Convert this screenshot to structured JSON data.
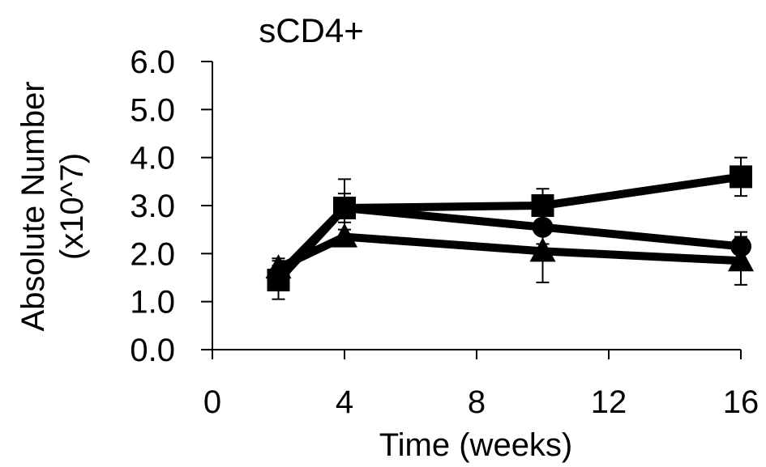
{
  "chart_data": {
    "type": "line",
    "title": "sCD4+",
    "xlabel": "Time (weeks)",
    "ylabel_lines": [
      "Absolute Number",
      "(x10^7)"
    ],
    "xlim": [
      0,
      16
    ],
    "ylim": [
      0,
      6
    ],
    "xticks": [
      0,
      4,
      8,
      12,
      16
    ],
    "xtick_labels": [
      "0",
      "4",
      "8",
      "12",
      "16"
    ],
    "yticks": [
      0,
      1,
      2,
      3,
      4,
      5,
      6
    ],
    "ytick_labels": [
      "0.0",
      "1.0",
      "2.0",
      "3.0",
      "4.0",
      "5.0",
      "6.0"
    ],
    "grid": false,
    "legend": "none",
    "series": [
      {
        "marker": "square",
        "color": "#000000",
        "x": [
          2,
          4,
          10,
          16
        ],
        "y": [
          1.45,
          2.95,
          3.0,
          3.6
        ],
        "error": [
          0.4,
          0.6,
          0.35,
          0.4
        ]
      },
      {
        "marker": "circle",
        "color": "#000000",
        "x": [
          2,
          4,
          10,
          16
        ],
        "y": [
          1.55,
          2.95,
          2.55,
          2.15
        ],
        "error": [
          0.2,
          0.3,
          0.35,
          0.3
        ]
      },
      {
        "marker": "triangle",
        "color": "#000000",
        "x": [
          2,
          4,
          10,
          16
        ],
        "y": [
          1.7,
          2.35,
          2.05,
          1.85
        ],
        "error": [
          0.2,
          0.15,
          0.65,
          0.5
        ]
      }
    ]
  }
}
